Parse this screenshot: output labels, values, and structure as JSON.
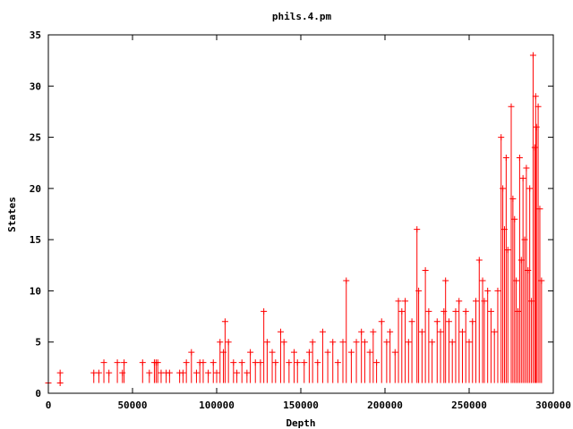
{
  "chart_data": {
    "type": "scatter",
    "title": "phils.4.pm",
    "xlabel": "Depth",
    "ylabel": "States",
    "xlim": [
      0,
      300000
    ],
    "ylim": [
      0,
      35
    ],
    "xticks": [
      0,
      50000,
      100000,
      150000,
      200000,
      250000,
      300000
    ],
    "yticks": [
      0,
      5,
      10,
      15,
      20,
      25,
      30,
      35
    ],
    "xtick_labels": [
      "0",
      "50000",
      "100000",
      "150000",
      "200000",
      "250000",
      "300000"
    ],
    "ytick_labels": [
      "0",
      "5",
      "10",
      "15",
      "20",
      "25",
      "30",
      "35"
    ],
    "grid": false,
    "series": [
      {
        "color": "#ff0000",
        "marker": "plus",
        "points": [
          [
            0,
            1
          ],
          [
            7000,
            2
          ],
          [
            7000,
            1
          ],
          [
            27000,
            2
          ],
          [
            30000,
            2
          ],
          [
            33000,
            3
          ],
          [
            36000,
            2
          ],
          [
            41000,
            3
          ],
          [
            44000,
            2
          ],
          [
            45000,
            3
          ],
          [
            56000,
            3
          ],
          [
            60000,
            2
          ],
          [
            63000,
            3
          ],
          [
            64000,
            3
          ],
          [
            65000,
            3
          ],
          [
            67000,
            2
          ],
          [
            70000,
            2
          ],
          [
            72000,
            2
          ],
          [
            78000,
            2
          ],
          [
            80000,
            2
          ],
          [
            82000,
            3
          ],
          [
            85000,
            4
          ],
          [
            88000,
            2
          ],
          [
            90000,
            3
          ],
          [
            92000,
            3
          ],
          [
            95000,
            2
          ],
          [
            98000,
            3
          ],
          [
            100000,
            2
          ],
          [
            102000,
            5
          ],
          [
            104000,
            4
          ],
          [
            105000,
            7
          ],
          [
            107000,
            5
          ],
          [
            110000,
            3
          ],
          [
            112000,
            2
          ],
          [
            115000,
            3
          ],
          [
            118000,
            2
          ],
          [
            120000,
            4
          ],
          [
            123000,
            3
          ],
          [
            126000,
            3
          ],
          [
            128000,
            8
          ],
          [
            130000,
            5
          ],
          [
            133000,
            4
          ],
          [
            135000,
            3
          ],
          [
            138000,
            6
          ],
          [
            140000,
            5
          ],
          [
            143000,
            3
          ],
          [
            146000,
            4
          ],
          [
            148000,
            3
          ],
          [
            152000,
            3
          ],
          [
            155000,
            4
          ],
          [
            157000,
            5
          ],
          [
            160000,
            3
          ],
          [
            163000,
            6
          ],
          [
            166000,
            4
          ],
          [
            169000,
            5
          ],
          [
            172000,
            3
          ],
          [
            175000,
            5
          ],
          [
            177000,
            11
          ],
          [
            180000,
            4
          ],
          [
            183000,
            5
          ],
          [
            186000,
            6
          ],
          [
            188000,
            5
          ],
          [
            191000,
            4
          ],
          [
            193000,
            6
          ],
          [
            195000,
            3
          ],
          [
            198000,
            7
          ],
          [
            201000,
            5
          ],
          [
            203000,
            6
          ],
          [
            206000,
            4
          ],
          [
            208000,
            9
          ],
          [
            210000,
            8
          ],
          [
            212000,
            9
          ],
          [
            214000,
            5
          ],
          [
            216000,
            7
          ],
          [
            219000,
            16
          ],
          [
            220000,
            10
          ],
          [
            222000,
            6
          ],
          [
            224000,
            12
          ],
          [
            226000,
            8
          ],
          [
            228000,
            5
          ],
          [
            231000,
            7
          ],
          [
            233000,
            6
          ],
          [
            235000,
            8
          ],
          [
            236000,
            11
          ],
          [
            238000,
            7
          ],
          [
            240000,
            5
          ],
          [
            242000,
            8
          ],
          [
            244000,
            9
          ],
          [
            246000,
            6
          ],
          [
            248000,
            8
          ],
          [
            250000,
            5
          ],
          [
            252000,
            7
          ],
          [
            254000,
            9
          ],
          [
            256000,
            13
          ],
          [
            258000,
            11
          ],
          [
            259000,
            9
          ],
          [
            261000,
            10
          ],
          [
            263000,
            8
          ],
          [
            265000,
            6
          ],
          [
            267000,
            10
          ],
          [
            269000,
            25
          ],
          [
            270000,
            20
          ],
          [
            271000,
            16
          ],
          [
            272000,
            23
          ],
          [
            273000,
            14
          ],
          [
            275000,
            28
          ],
          [
            276000,
            19
          ],
          [
            277000,
            17
          ],
          [
            278000,
            11
          ],
          [
            279000,
            8
          ],
          [
            280000,
            23
          ],
          [
            281000,
            13
          ],
          [
            282000,
            21
          ],
          [
            283000,
            15
          ],
          [
            284000,
            22
          ],
          [
            285000,
            12
          ],
          [
            286000,
            20
          ],
          [
            287000,
            9
          ],
          [
            288000,
            33
          ],
          [
            289000,
            24
          ],
          [
            289500,
            29
          ],
          [
            290000,
            26
          ],
          [
            291000,
            28
          ],
          [
            292000,
            18
          ],
          [
            293000,
            11
          ]
        ]
      }
    ]
  }
}
